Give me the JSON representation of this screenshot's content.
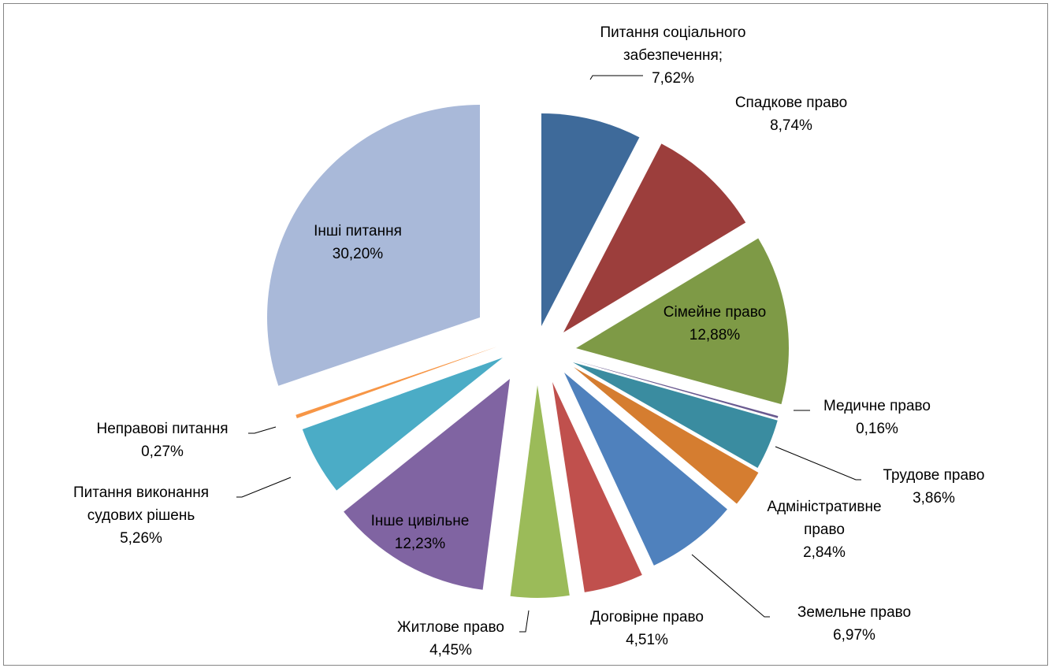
{
  "chart_data": {
    "type": "pie",
    "exploded": true,
    "title": "",
    "legend": "none",
    "slices": [
      {
        "label_lines": [
          "Питання соціального",
          "забезпечення;",
          "7,62%"
        ],
        "value": 7.62,
        "color": "#3E6A9A"
      },
      {
        "label_lines": [
          "Спадкове право",
          "8,74%"
        ],
        "value": 8.74,
        "color": "#9C3E3C"
      },
      {
        "label_lines": [
          "Сімейне право",
          "12,88%"
        ],
        "value": 12.88,
        "color": "#7E9A46"
      },
      {
        "label_lines": [
          "Медичне право",
          "0,16%"
        ],
        "value": 0.16,
        "color": "#6A5A90"
      },
      {
        "label_lines": [
          "Трудове право",
          "3,86%"
        ],
        "value": 3.86,
        "color": "#3A8CA0"
      },
      {
        "label_lines": [
          "Адміністративне",
          "право",
          "2,84%"
        ],
        "value": 2.84,
        "color": "#D57D30"
      },
      {
        "label_lines": [
          "Земельне право",
          "6,97%"
        ],
        "value": 6.97,
        "color": "#4F81BD"
      },
      {
        "label_lines": [
          "Договірне право",
          "4,51%"
        ],
        "value": 4.51,
        "color": "#C0504D"
      },
      {
        "label_lines": [
          "Житлове право",
          "4,45%"
        ],
        "value": 4.45,
        "color": "#9BBB59"
      },
      {
        "label_lines": [
          "Інше цивільне",
          "12,23%"
        ],
        "value": 12.23,
        "color": "#8064A2"
      },
      {
        "label_lines": [
          "Питання виконання",
          "судових рішень",
          "5,26%"
        ],
        "value": 5.26,
        "color": "#4BACC6"
      },
      {
        "label_lines": [
          "Неправові питання",
          "0,27%"
        ],
        "value": 0.27,
        "color": "#F79646"
      },
      {
        "label_lines": [
          "Інші питання",
          "30,20%"
        ],
        "value": 30.2,
        "color": "#A9B9D9"
      }
    ]
  }
}
